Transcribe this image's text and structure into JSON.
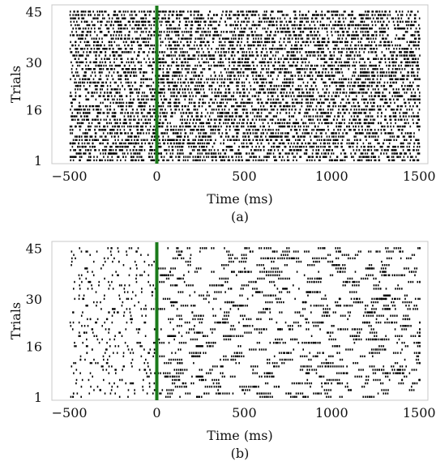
{
  "chart_data": [
    {
      "type": "scatter",
      "panel": "(a)",
      "xlabel": "Time (ms)",
      "ylabel": "Trials",
      "xlim": [
        -600,
        1550
      ],
      "ylim": [
        0,
        47
      ],
      "x_ticks": [
        -500,
        0,
        500,
        1000,
        1500
      ],
      "x_tick_labels": [
        "−500",
        "0",
        "500",
        "1000",
        "1500"
      ],
      "y_ticks": [
        1,
        16,
        30,
        45
      ],
      "y_tick_labels": [
        "1",
        "16",
        "30",
        "45"
      ],
      "trials": 45,
      "time_range": [
        -500,
        1500
      ],
      "stimulus_onset_ms": 0,
      "stimulus_line_color": "#1a7a1a",
      "spike_color": "#000000",
      "grid": false,
      "density": "very dense, nearly continuous rows of spike ticks",
      "approx_spikes_per_trial": 160
    },
    {
      "type": "scatter",
      "panel": "(b)",
      "xlabel": "Time (ms)",
      "ylabel": "Trials",
      "xlim": [
        -600,
        1550
      ],
      "ylim": [
        0,
        47
      ],
      "x_ticks": [
        -500,
        0,
        500,
        1000,
        1500
      ],
      "x_tick_labels": [
        "−500",
        "0",
        "500",
        "1000",
        "1500"
      ],
      "y_ticks": [
        1,
        16,
        30,
        45
      ],
      "y_tick_labels": [
        "1",
        "16",
        "30",
        "45"
      ],
      "trials": 45,
      "time_range": [
        -500,
        1500
      ],
      "stimulus_onset_ms": 0,
      "stimulus_line_color": "#1a7a1a",
      "spike_color": "#000000",
      "grid": false,
      "density": "sparse spikes, denser after stimulus onset",
      "approx_spikes_per_trial_pre": 8,
      "approx_spikes_per_trial_post": 40
    }
  ]
}
